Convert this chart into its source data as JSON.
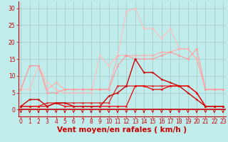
{
  "background_color": "#c0ecec",
  "grid_color": "#aacccc",
  "x": [
    0,
    1,
    2,
    3,
    4,
    5,
    6,
    7,
    8,
    9,
    10,
    11,
    12,
    13,
    14,
    15,
    16,
    17,
    18,
    19,
    20,
    21,
    22,
    23
  ],
  "ylim": [
    -2,
    32
  ],
  "yticks": [
    0,
    5,
    10,
    15,
    20,
    25,
    30
  ],
  "xlim": [
    -0.3,
    23.3
  ],
  "line_light1": [
    6,
    13,
    13,
    6,
    8,
    6,
    6,
    6,
    6,
    6,
    6,
    16,
    16,
    16,
    16,
    16,
    17,
    17,
    18,
    18,
    15,
    6,
    6,
    6
  ],
  "line_light1_color": "#ffaaaa",
  "line_light2": [
    6,
    6,
    13,
    8,
    6,
    5,
    5,
    5,
    5,
    16,
    13,
    16,
    29,
    30,
    24,
    24,
    21,
    24,
    18,
    18,
    15,
    6,
    6,
    6
  ],
  "line_light2_color": "#ffbbbb",
  "line_light3": [
    6,
    13,
    13,
    5,
    5,
    6,
    6,
    6,
    6,
    6,
    6,
    13,
    16,
    15,
    15,
    15,
    16,
    17,
    16,
    15,
    18,
    6,
    6,
    6
  ],
  "line_light3_color": "#ff9999",
  "line_dark1": [
    1,
    1,
    1,
    2,
    2,
    2,
    2,
    2,
    2,
    2,
    2,
    7,
    7,
    7,
    7,
    7,
    7,
    7,
    7,
    7,
    5,
    1,
    1,
    1
  ],
  "line_dark1_color": "#dd2222",
  "line_dark2": [
    1,
    3,
    3,
    1,
    2,
    2,
    1,
    1,
    1,
    1,
    4,
    5,
    7,
    15,
    11,
    11,
    9,
    8,
    7,
    5,
    3,
    1,
    1,
    1
  ],
  "line_dark2_color": "#cc0000",
  "line_dark3": [
    1,
    1,
    1,
    1,
    2,
    1,
    1,
    1,
    1,
    1,
    1,
    1,
    1,
    7,
    7,
    6,
    6,
    7,
    7,
    7,
    5,
    1,
    1,
    1
  ],
  "line_dark3_color": "#ee0000",
  "xlabel": "Vent moyen/en rafales ( km/h )",
  "tick_label_fontsize": 5.5,
  "xlabel_fontsize": 7.5
}
